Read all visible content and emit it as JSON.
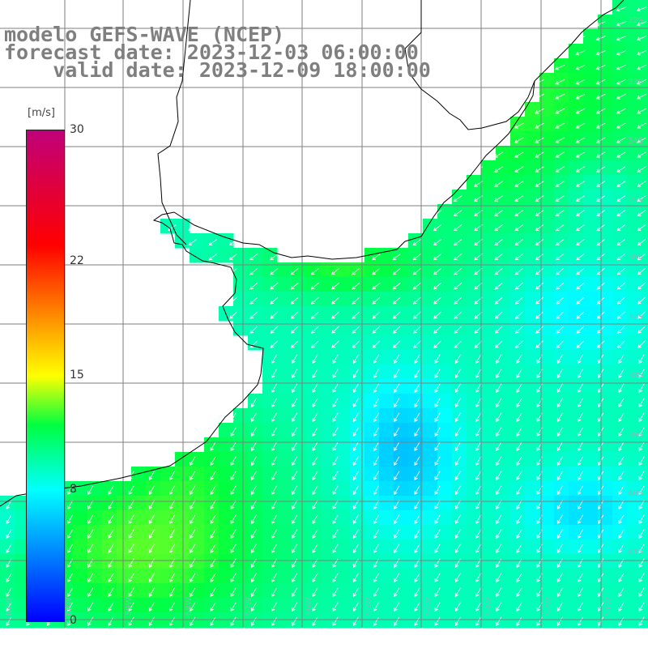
{
  "title": {
    "line1": "modelo GEFS-WAVE (NCEP)",
    "line2": "forecast date: 2023-12-03 06:00:00",
    "line3": "    valid date: 2023-12-09 18:00:00"
  },
  "colorbar": {
    "unit": "[m/s]",
    "min": 0,
    "max": 30,
    "ticks": [
      "30",
      "22",
      "15",
      "8",
      "0"
    ],
    "tick_values": [
      30,
      22,
      15,
      8,
      0
    ],
    "stops": [
      {
        "v": 0,
        "color": "#0000ff"
      },
      {
        "v": 4,
        "color": "#0080ff"
      },
      {
        "v": 8,
        "color": "#00ffff"
      },
      {
        "v": 12,
        "color": "#00ff40"
      },
      {
        "v": 15,
        "color": "#ffff00"
      },
      {
        "v": 19,
        "color": "#ff8000"
      },
      {
        "v": 23,
        "color": "#ff0000"
      },
      {
        "v": 30,
        "color": "#c0007a"
      }
    ]
  },
  "colors": {
    "land": "#ffffff",
    "grid": "#7f7f7f",
    "coast": "#000000",
    "arrow": "#ffffff"
  },
  "axes": {
    "lat_labels": [
      "32S",
      "33S",
      "34S",
      "35S",
      "36S",
      "37S",
      "38S",
      "39S",
      "40S",
      "41S"
    ],
    "lon_labels": [
      "61W",
      "60W",
      "59W",
      "58W",
      "57W",
      "56W",
      "55W",
      "54W",
      "53W",
      "52W",
      "51W"
    ]
  },
  "field": {
    "description_free": true,
    "dominant_wind_direction": "from northeast"
  }
}
